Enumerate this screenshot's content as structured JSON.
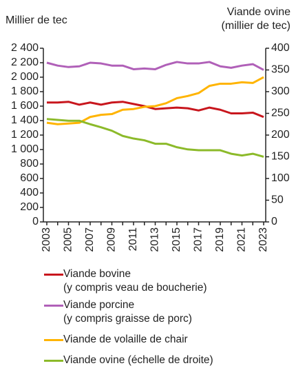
{
  "chart_data": {
    "type": "line",
    "y_label": "Millier de tec",
    "y2_label": "Viande ovine\n(millier de tec)",
    "categories": [
      "2003",
      null,
      "2005",
      null,
      "2007",
      null,
      "2009",
      null,
      "2011",
      null,
      "2013",
      null,
      "2015",
      null,
      "2017",
      null,
      "2019",
      null,
      "2021",
      null,
      "2023"
    ],
    "ylim": [
      0,
      2400
    ],
    "yticks": [
      0,
      200,
      400,
      600,
      800,
      {
        "value": 1000,
        "label": "1 000"
      },
      {
        "value": 1200,
        "label": "1 200"
      },
      {
        "value": 1400,
        "label": "1 400"
      },
      {
        "value": 1600,
        "label": "1 600"
      },
      {
        "value": 1800,
        "label": "1 800"
      },
      {
        "value": 2000,
        "label": "2 000"
      },
      {
        "value": 2200,
        "label": "2 200"
      },
      {
        "value": 2400,
        "label": "2 400"
      }
    ],
    "y2lim": [
      0,
      400
    ],
    "y2ticks": [
      0,
      50,
      100,
      150,
      200,
      250,
      300,
      350,
      400
    ],
    "series": [
      {
        "name": "Viande bovine\n(y compris veau de boucherie)",
        "color": "#c8161d",
        "values": [
          1650,
          1650,
          1660,
          1620,
          1650,
          1620,
          1650,
          1660,
          1630,
          1600,
          1560,
          1570,
          1580,
          1570,
          1540,
          1580,
          1550,
          1500,
          1500,
          1510,
          1450
        ]
      },
      {
        "name": "Viande porcine\n(y compris graisse de porc)",
        "color": "#b060b8",
        "values": [
          2200,
          2160,
          2140,
          2150,
          2200,
          2190,
          2160,
          2160,
          2110,
          2120,
          2110,
          2170,
          2210,
          2190,
          2190,
          2210,
          2150,
          2130,
          2160,
          2180,
          2100
        ]
      },
      {
        "name": "Viande de volaille de chair",
        "color": "#ffb400",
        "values": [
          1370,
          1350,
          1360,
          1370,
          1450,
          1480,
          1490,
          1550,
          1560,
          1590,
          1600,
          1640,
          1710,
          1740,
          1780,
          1880,
          1910,
          1910,
          1930,
          1920,
          2000
        ]
      },
      {
        "name": "Viande ovine (échelle de droite)",
        "color": "#8cba2a",
        "axis": "y2",
        "values": [
          237,
          235,
          233,
          233,
          225,
          218,
          210,
          198,
          192,
          188,
          180,
          180,
          172,
          167,
          165,
          165,
          165,
          157,
          153,
          157,
          150
        ]
      }
    ]
  }
}
